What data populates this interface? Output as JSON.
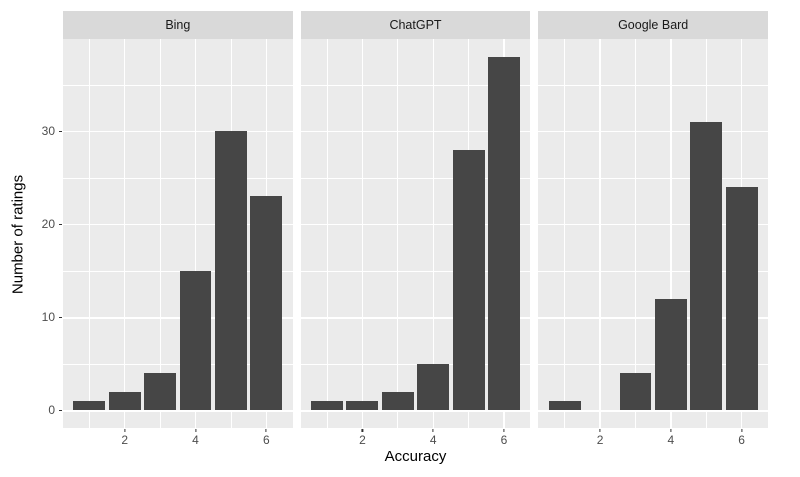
{
  "chart_data": {
    "type": "bar",
    "variant": "faceted-histogram",
    "title": "",
    "xlabel": "Accuracy",
    "ylabel": "Number of ratings",
    "categories": [
      1,
      2,
      3,
      4,
      5,
      6
    ],
    "series": [
      {
        "name": "Bing",
        "values": [
          1,
          2,
          4,
          15,
          30,
          23
        ]
      },
      {
        "name": "ChatGPT",
        "values": [
          1,
          1,
          2,
          5,
          28,
          38
        ]
      },
      {
        "name": "Google Bard",
        "values": [
          1,
          0,
          4,
          12,
          31,
          24
        ]
      }
    ],
    "x_ticks": [
      2,
      4,
      6
    ],
    "y_ticks": [
      0,
      10,
      20,
      30
    ],
    "bar_width_fraction": 0.9,
    "expand_fraction": 0.05,
    "grid": true,
    "legend": "none",
    "style": {
      "bar_fill": "#464646",
      "panel_bg": "#EBEBEB",
      "strip_bg": "#D9D9D9",
      "grid_color": "#FFFFFF",
      "tick_label_color": "#4D4D4D",
      "strip_text_color": "#1A1A1A",
      "axis_title_color": "#000000",
      "tick_mark_color": "#333333",
      "background": "#FFFFFF"
    }
  }
}
